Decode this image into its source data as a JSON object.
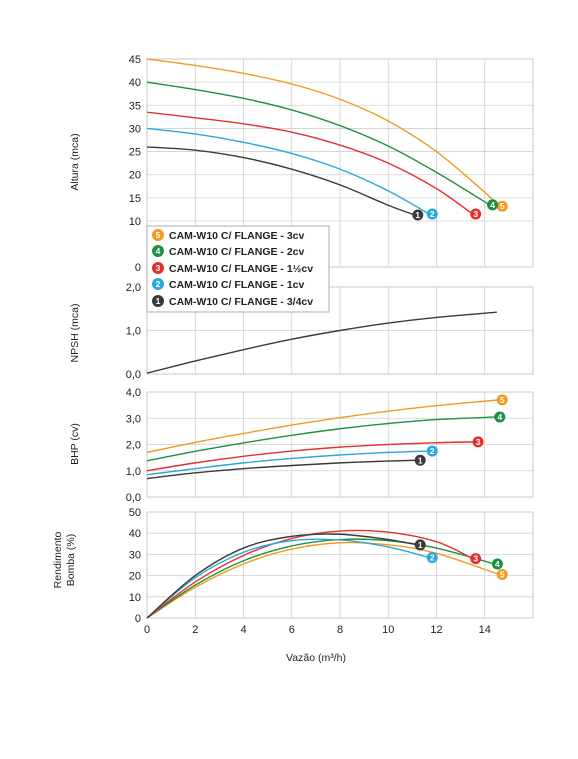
{
  "chart_data": [
    {
      "type": "line",
      "panel": "altura",
      "ylabel": "Altura (mca)",
      "xlim": [
        0,
        16
      ],
      "ylim": [
        0,
        45
      ],
      "yticks": [
        "0",
        "10",
        "15",
        "20",
        "25",
        "30",
        "35",
        "40",
        "45"
      ],
      "series": [
        {
          "id": "5",
          "color": "#f39a1e",
          "x": [
            0,
            2,
            4,
            6,
            8,
            10,
            12,
            14,
            14.6
          ],
          "y": [
            45,
            43.6,
            41.9,
            39.6,
            36.3,
            31.6,
            25,
            16.2,
            13.2
          ]
        },
        {
          "id": "4",
          "color": "#1e9141",
          "x": [
            0,
            2,
            4,
            6,
            8,
            10,
            12,
            14.2
          ],
          "y": [
            40,
            38.4,
            36.5,
            34,
            30.6,
            26.2,
            20.5,
            13.5
          ]
        },
        {
          "id": "3",
          "color": "#e3302c",
          "x": [
            0,
            2,
            4,
            6,
            8,
            10,
            12,
            13.5
          ],
          "y": [
            33.5,
            32.3,
            31,
            29.2,
            26.4,
            22.5,
            17,
            11.5
          ]
        },
        {
          "id": "2",
          "color": "#2aa8dc",
          "x": [
            0,
            2,
            4,
            6,
            8,
            10,
            11.7
          ],
          "y": [
            30,
            28.8,
            27,
            24.6,
            21.2,
            16.5,
            11.5
          ]
        },
        {
          "id": "1",
          "color": "#3a3a3a",
          "x": [
            0,
            2,
            4,
            6,
            8,
            10,
            11.1
          ],
          "y": [
            26,
            25.3,
            23.7,
            21.2,
            17.8,
            13.4,
            11.3
          ]
        }
      ]
    },
    {
      "type": "line",
      "panel": "npsh",
      "ylabel": "NPSH (mca)",
      "xlim": [
        0,
        16
      ],
      "ylim": [
        0,
        2.0
      ],
      "yticks": [
        "0,0",
        "1,0",
        "2,0"
      ],
      "series": [
        {
          "id": "npsh",
          "color": "#3a3a3a",
          "x": [
            0,
            2,
            4,
            6,
            8,
            10,
            12,
            14.5
          ],
          "y": [
            0.02,
            0.3,
            0.56,
            0.8,
            1.0,
            1.17,
            1.3,
            1.42
          ]
        }
      ]
    },
    {
      "type": "line",
      "panel": "bhp",
      "ylabel": "BHP (cv)",
      "xlim": [
        0,
        16
      ],
      "ylim": [
        0,
        4.0
      ],
      "yticks": [
        "0,0",
        "1,0",
        "2,0",
        "3,0",
        "4,0"
      ],
      "series": [
        {
          "id": "5",
          "color": "#f39a1e",
          "x": [
            0,
            2,
            4,
            6,
            8,
            10,
            12,
            14.6
          ],
          "y": [
            1.7,
            2.08,
            2.42,
            2.74,
            3.02,
            3.27,
            3.48,
            3.7
          ]
        },
        {
          "id": "4",
          "color": "#1e9141",
          "x": [
            0,
            2,
            4,
            6,
            8,
            10,
            12,
            14.5
          ],
          "y": [
            1.38,
            1.74,
            2.06,
            2.35,
            2.6,
            2.8,
            2.95,
            3.05
          ]
        },
        {
          "id": "3",
          "color": "#e3302c",
          "x": [
            0,
            2,
            4,
            6,
            8,
            10,
            12,
            13.6
          ],
          "y": [
            1.0,
            1.3,
            1.55,
            1.75,
            1.9,
            2.0,
            2.07,
            2.1
          ]
        },
        {
          "id": "2",
          "color": "#2aa8dc",
          "x": [
            0,
            2,
            4,
            6,
            8,
            10,
            11.7
          ],
          "y": [
            0.85,
            1.08,
            1.3,
            1.47,
            1.6,
            1.7,
            1.75
          ]
        },
        {
          "id": "1",
          "color": "#3a3a3a",
          "x": [
            0,
            2,
            4,
            6,
            8,
            10,
            11.2
          ],
          "y": [
            0.7,
            0.92,
            1.08,
            1.2,
            1.3,
            1.37,
            1.4
          ]
        }
      ]
    },
    {
      "type": "line",
      "panel": "rendimento",
      "ylabel": "Rendimento Bomba (%)",
      "xlabel": "Vazão (m³/h)",
      "xlim": [
        0,
        16
      ],
      "ylim": [
        0,
        50
      ],
      "yticks": [
        "0",
        "10",
        "20",
        "30",
        "40",
        "50"
      ],
      "xticks": [
        "0",
        "2",
        "4",
        "6",
        "8",
        "10",
        "12",
        "14"
      ],
      "series": [
        {
          "id": "5",
          "color": "#f39a1e",
          "x": [
            0,
            2,
            4,
            6,
            8,
            10,
            12,
            14.6
          ],
          "y": [
            0,
            14.5,
            25.5,
            32.5,
            35.5,
            34.5,
            30.5,
            20.5
          ]
        },
        {
          "id": "4",
          "color": "#1e9141",
          "x": [
            0,
            2,
            4,
            6,
            8,
            10,
            12,
            14.4
          ],
          "y": [
            0,
            15.5,
            27,
            34,
            37,
            36.5,
            33,
            25.5
          ]
        },
        {
          "id": "3",
          "color": "#e3302c",
          "x": [
            0,
            2,
            4,
            6,
            8,
            10,
            12,
            13.5
          ],
          "y": [
            0,
            17,
            29.5,
            37.5,
            41,
            40.5,
            36,
            28
          ]
        },
        {
          "id": "2",
          "color": "#2aa8dc",
          "x": [
            0,
            2,
            4,
            6,
            8,
            10,
            11.7
          ],
          "y": [
            0,
            19,
            31,
            36.5,
            36.8,
            33.5,
            28.5
          ]
        },
        {
          "id": "1",
          "color": "#3a3a3a",
          "x": [
            0,
            2,
            4,
            6,
            8,
            10,
            11.2
          ],
          "y": [
            0,
            20,
            33,
            38.5,
            39.5,
            37,
            34.5
          ]
        }
      ]
    }
  ],
  "legend": [
    {
      "id": "5",
      "color": "#f39a1e",
      "label": "CAM-W10 C/ FLANGE - 3cv"
    },
    {
      "id": "4",
      "color": "#1e9141",
      "label": "CAM-W10 C/ FLANGE - 2cv"
    },
    {
      "id": "3",
      "color": "#e3302c",
      "label": "CAM-W10 C/ FLANGE - 1½cv"
    },
    {
      "id": "2",
      "color": "#2aa8dc",
      "label": "CAM-W10 C/ FLANGE - 1cv"
    },
    {
      "id": "1",
      "color": "#3a3a3a",
      "label": "CAM-W10 C/ FLANGE - 3/4cv"
    }
  ],
  "labels": {
    "ylabel_altura": "Altura (mca)",
    "ylabel_npsh": "NPSH (mca)",
    "ylabel_bhp": "BHP (cv)",
    "ylabel_rend_1": "Rendimento",
    "ylabel_rend_2": "Bomba (%)",
    "xlabel": "Vazão (m³/h)"
  }
}
